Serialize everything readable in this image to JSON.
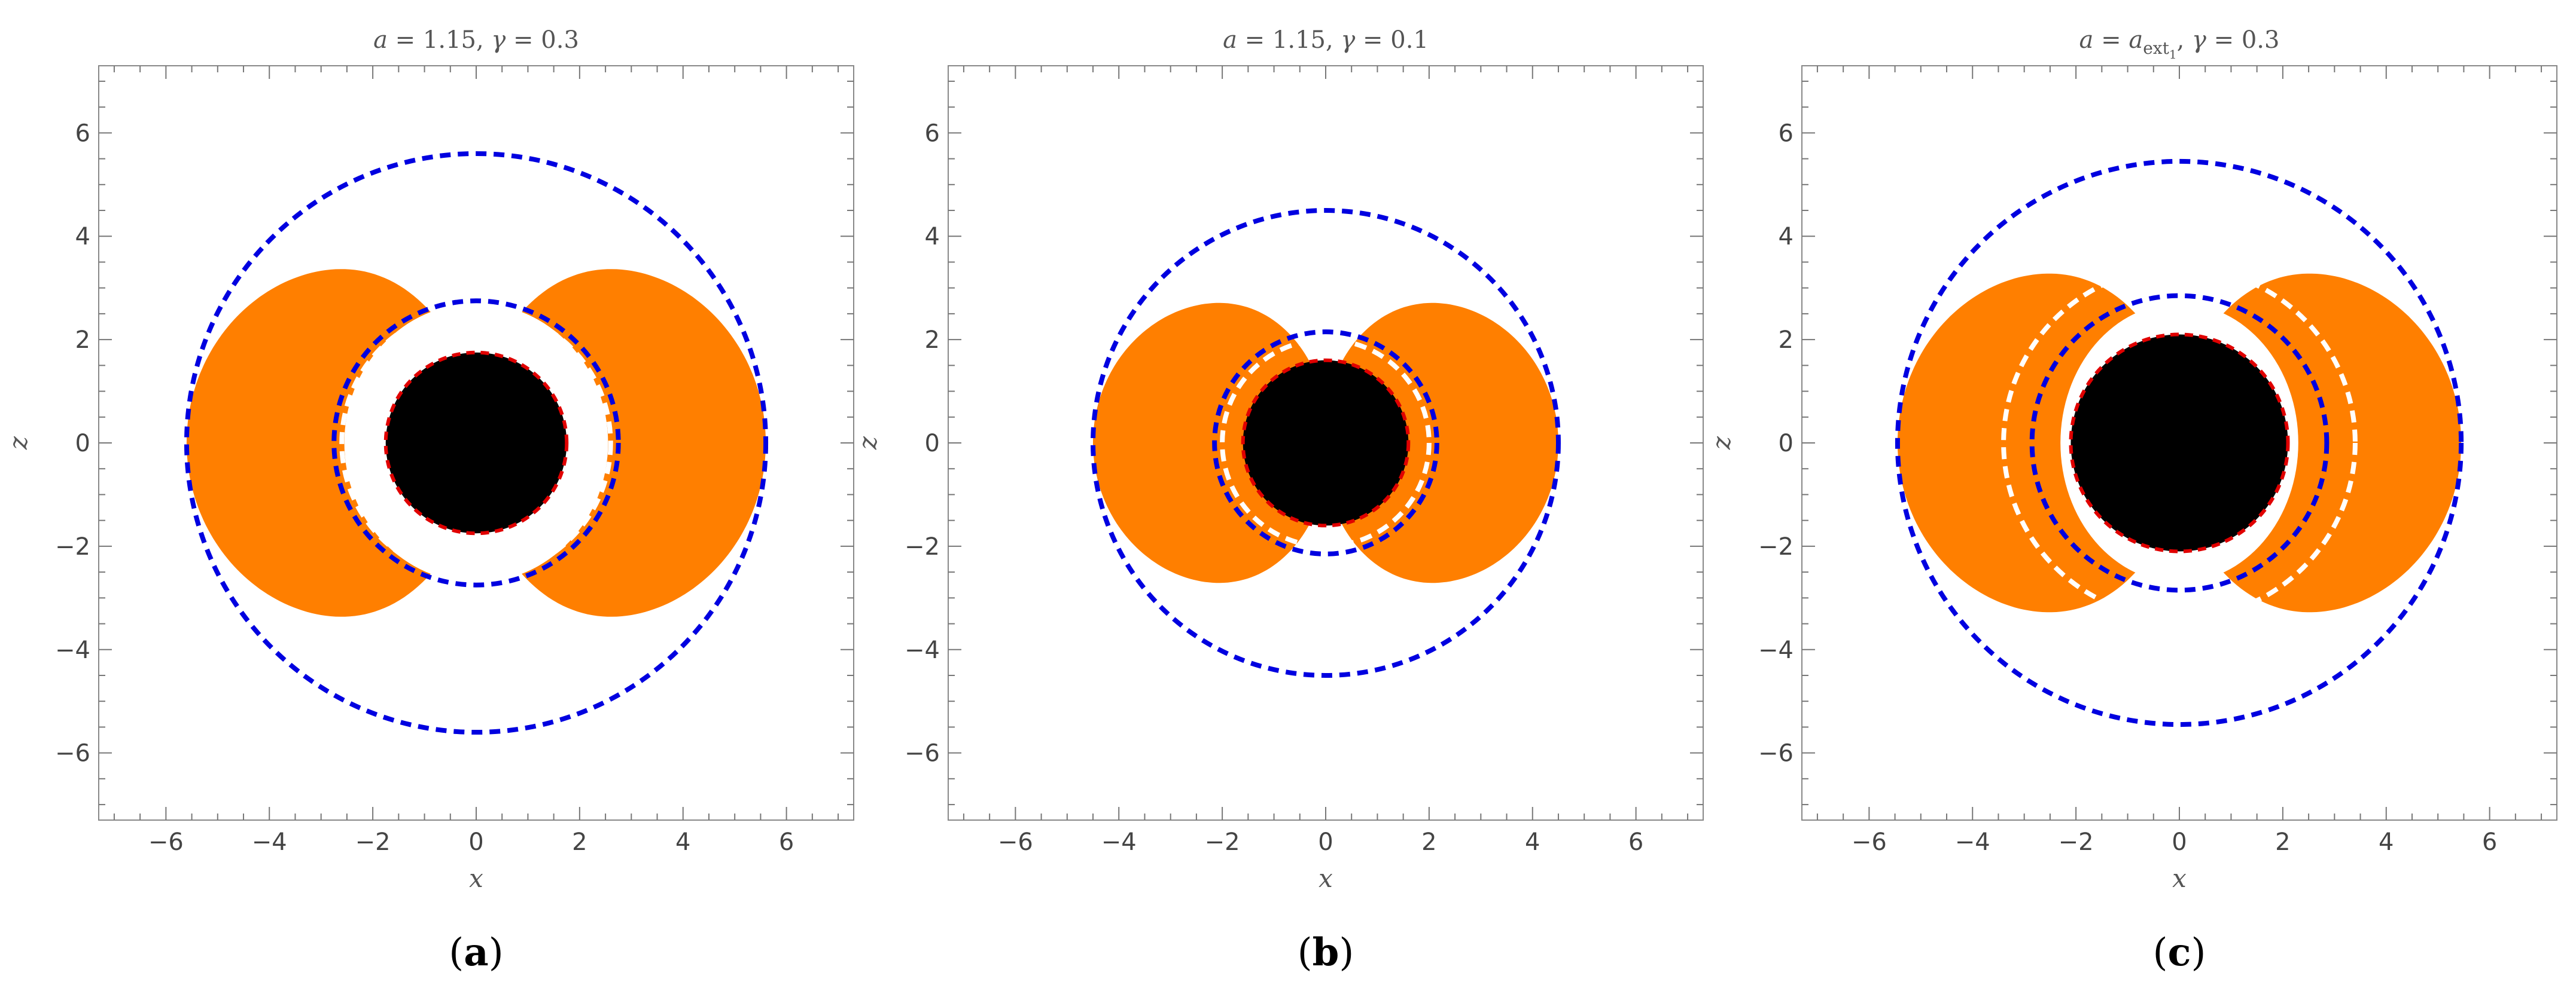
{
  "chart_data": [
    {
      "type": "region-plot",
      "panel_label": "(a)",
      "title_parts": {
        "a": "1.15",
        "a_sub": "",
        "gamma": "0.3"
      },
      "xlabel": "x",
      "ylabel": "z",
      "xlim": [
        -7.3,
        7.3
      ],
      "ylim": [
        -7.3,
        7.3
      ],
      "xticks": [
        -6,
        -4,
        -2,
        0,
        2,
        4,
        6
      ],
      "yticks": [
        -6,
        -4,
        -2,
        0,
        2,
        4,
        6
      ],
      "grid": false,
      "colors": {
        "orange": "#ff7f00",
        "blue": "#0000e0",
        "red": "#e00000",
        "white": "#ffffff",
        "black": "#000000"
      },
      "horizon_radius": 1.75,
      "ergo_outer": {
        "R": 5.6,
        "min_theta_fraction": 0.08
      },
      "blue_dashed_circles": [
        5.6,
        2.75
      ],
      "white_dashed_circles": [
        2.6
      ],
      "white_lens": {
        "rx": 2.55,
        "rz": 2.7
      },
      "orange_notch": 0.65
    },
    {
      "type": "region-plot",
      "panel_label": "(b)",
      "title_parts": {
        "a": "1.15",
        "a_sub": "",
        "gamma": "0.1"
      },
      "xlabel": "x",
      "ylabel": "z",
      "xlim": [
        -7.3,
        7.3
      ],
      "ylim": [
        -7.3,
        7.3
      ],
      "xticks": [
        -6,
        -4,
        -2,
        0,
        2,
        4,
        6
      ],
      "yticks": [
        -6,
        -4,
        -2,
        0,
        2,
        4,
        6
      ],
      "grid": false,
      "colors": {
        "orange": "#ff7f00",
        "blue": "#0000e0",
        "red": "#e00000",
        "white": "#ffffff",
        "black": "#000000"
      },
      "horizon_radius": 1.6,
      "ergo_outer": {
        "R": 4.5,
        "min_theta_fraction": 0.08
      },
      "blue_dashed_circles": [
        4.5,
        2.15
      ],
      "white_dashed_circles": [
        2.0
      ],
      "white_lens": {
        "rx": 0.0,
        "rz": 0.0
      },
      "orange_notch": 0.35
    },
    {
      "type": "region-plot",
      "panel_label": "(c)",
      "title_parts": {
        "a": "a",
        "a_sub": "ext",
        "a_subsub": "1",
        "gamma": "0.3"
      },
      "xlabel": "x",
      "ylabel": "z",
      "xlim": [
        -7.3,
        7.3
      ],
      "ylim": [
        -7.3,
        7.3
      ],
      "xticks": [
        -6,
        -4,
        -2,
        0,
        2,
        4,
        6
      ],
      "yticks": [
        -6,
        -4,
        -2,
        0,
        2,
        4,
        6
      ],
      "grid": false,
      "colors": {
        "orange": "#ff7f00",
        "blue": "#0000e0",
        "red": "#e00000",
        "white": "#ffffff",
        "black": "#000000"
      },
      "horizon_radius": 2.1,
      "ergo_outer": {
        "R": 5.45,
        "min_theta_fraction": 0.08
      },
      "blue_dashed_circles": [
        5.45,
        2.85
      ],
      "white_dashed_circles": [
        3.4
      ],
      "white_lens": {
        "rx": 2.3,
        "rz": 2.7
      },
      "orange_notch": 0.5
    }
  ]
}
